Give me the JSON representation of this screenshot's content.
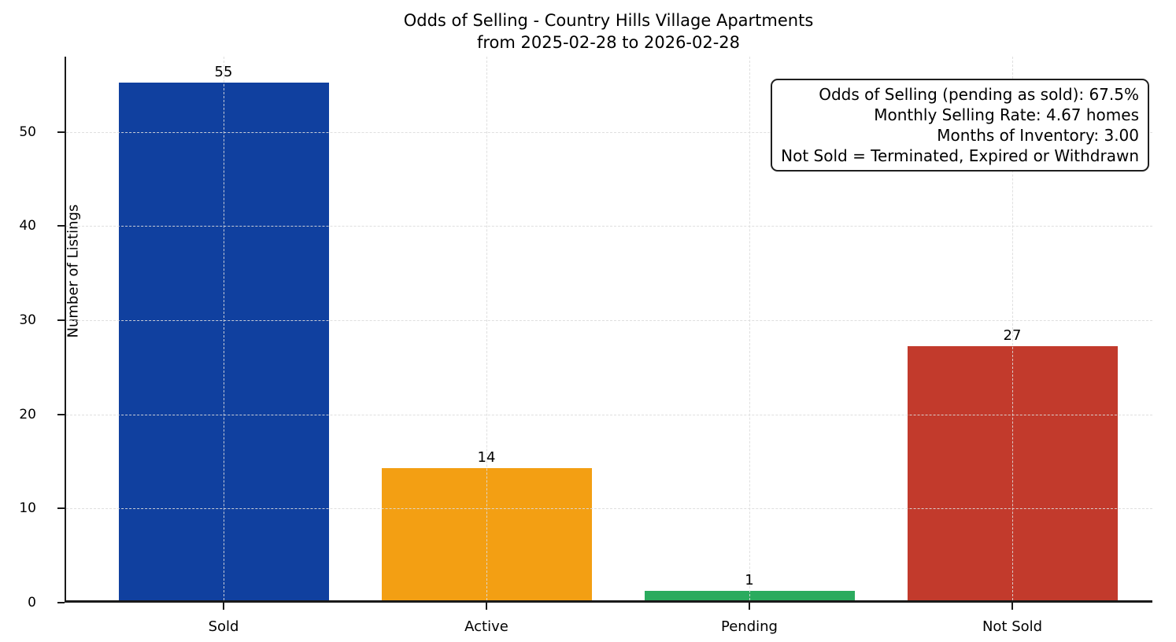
{
  "chart_data": {
    "type": "bar",
    "title": "Odds of Selling - Country Hills Village Apartments",
    "subtitle": "from 2025-02-28 to 2026-02-28",
    "categories": [
      "Sold",
      "Active",
      "Pending",
      "Not Sold"
    ],
    "values": [
      55,
      14,
      1,
      27
    ],
    "bar_colors": [
      "#10409F",
      "#F39F13",
      "#2BAB5E",
      "#C23A2C"
    ],
    "xlabel": "",
    "ylabel": "Number of Listings",
    "ylim": [
      0,
      58
    ],
    "yticks": [
      0,
      10,
      20,
      30,
      40,
      50
    ],
    "grid": "dashed light-gray gridlines on both axes, drawn above bars",
    "legend": "none",
    "annotation_lines": [
      "Odds of Selling (pending as sold): 67.5%",
      "Monthly Selling Rate: 4.67 homes",
      "Months of Inventory: 3.00",
      "Not Sold = Terminated, Expired or Withdrawn"
    ]
  },
  "colors": {
    "background": "#ffffff",
    "axis": "#1a1a1a",
    "grid": "#dcdcdc",
    "text": "#000000"
  }
}
